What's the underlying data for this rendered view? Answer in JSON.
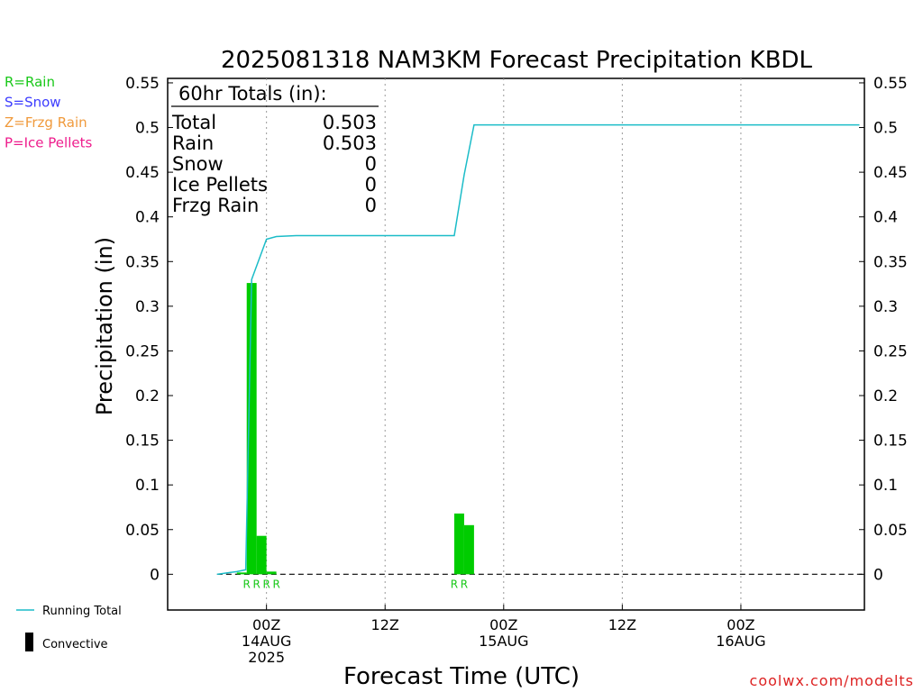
{
  "legend_left": [
    {
      "label": "R=Rain",
      "color": "#19c819"
    },
    {
      "label": "S=Snow",
      "color": "#3c3cff"
    },
    {
      "label": "Z=Frzg Rain",
      "color": "#f09a3c"
    },
    {
      "label": "P=Ice Pellets",
      "color": "#ee1c8c"
    }
  ],
  "legend_bottom": {
    "running_total_label": "Running Total",
    "running_total_color": "#1bbcc8",
    "convective_label": "Convective",
    "convective_color": "#000000"
  },
  "totals_box": {
    "header": "60hr Totals (in):",
    "rows": [
      {
        "label": "Total",
        "value": "0.503"
      },
      {
        "label": "Rain",
        "value": "0.503"
      },
      {
        "label": "Snow",
        "value": "0"
      },
      {
        "label": "Ice Pellets",
        "value": "0"
      },
      {
        "label": "Frzg Rain",
        "value": "0"
      }
    ]
  },
  "credit": "coolwx.com/modelts",
  "chart_data": {
    "type": "bar",
    "title": "2025081318 NAM3KM Forecast Precipitation KBDL",
    "xlabel": "Forecast Time (UTC)",
    "ylabel": "Precipitation (in)",
    "ylim": [
      -0.04,
      0.555
    ],
    "xlim_hours": [
      -10,
      60.5
    ],
    "yticks": [
      "0.55",
      "0.5",
      "0.45",
      "0.4",
      "0.35",
      "0.3",
      "0.25",
      "0.2",
      "0.15",
      "0.1",
      "0.05",
      "0"
    ],
    "xticks": [
      {
        "hour": 0,
        "lines": [
          "00Z",
          "14AUG",
          "2025"
        ]
      },
      {
        "hour": 12,
        "lines": [
          "12Z"
        ]
      },
      {
        "hour": 24,
        "lines": [
          "00Z",
          "15AUG"
        ]
      },
      {
        "hour": 36,
        "lines": [
          "12Z"
        ]
      },
      {
        "hour": 48,
        "lines": [
          "00Z",
          "16AUG"
        ]
      }
    ],
    "grid": "vertical dotted at ticks",
    "bars": {
      "name": "Rain",
      "color": "#00cc00",
      "width_hours": 1,
      "points": [
        {
          "hour": -2.5,
          "value": 0.002
        },
        {
          "hour": -1.5,
          "value": 0.326
        },
        {
          "hour": -0.5,
          "value": 0.043
        },
        {
          "hour": 0.5,
          "value": 0.003
        },
        {
          "hour": 19.5,
          "value": 0.068
        },
        {
          "hour": 20.5,
          "value": 0.055
        }
      ]
    },
    "precip_type_marks": [
      {
        "hour": -2,
        "label": "R"
      },
      {
        "hour": -1,
        "label": "R"
      },
      {
        "hour": 0,
        "label": "R"
      },
      {
        "hour": 1,
        "label": "R"
      },
      {
        "hour": 19,
        "label": "R"
      },
      {
        "hour": 20,
        "label": "R"
      }
    ],
    "running_total": {
      "name": "Running Total",
      "color": "#1bbcc8",
      "x": [
        -5,
        -3,
        -2.1,
        -1.5,
        0,
        1,
        3,
        6,
        12,
        18,
        19,
        20,
        21,
        24,
        30,
        36,
        42,
        48,
        54,
        60
      ],
      "y": [
        0,
        0.003,
        0.005,
        0.33,
        0.375,
        0.378,
        0.379,
        0.379,
        0.379,
        0.379,
        0.379,
        0.447,
        0.503,
        0.503,
        0.503,
        0.503,
        0.503,
        0.503,
        0.503,
        0.503
      ]
    }
  }
}
